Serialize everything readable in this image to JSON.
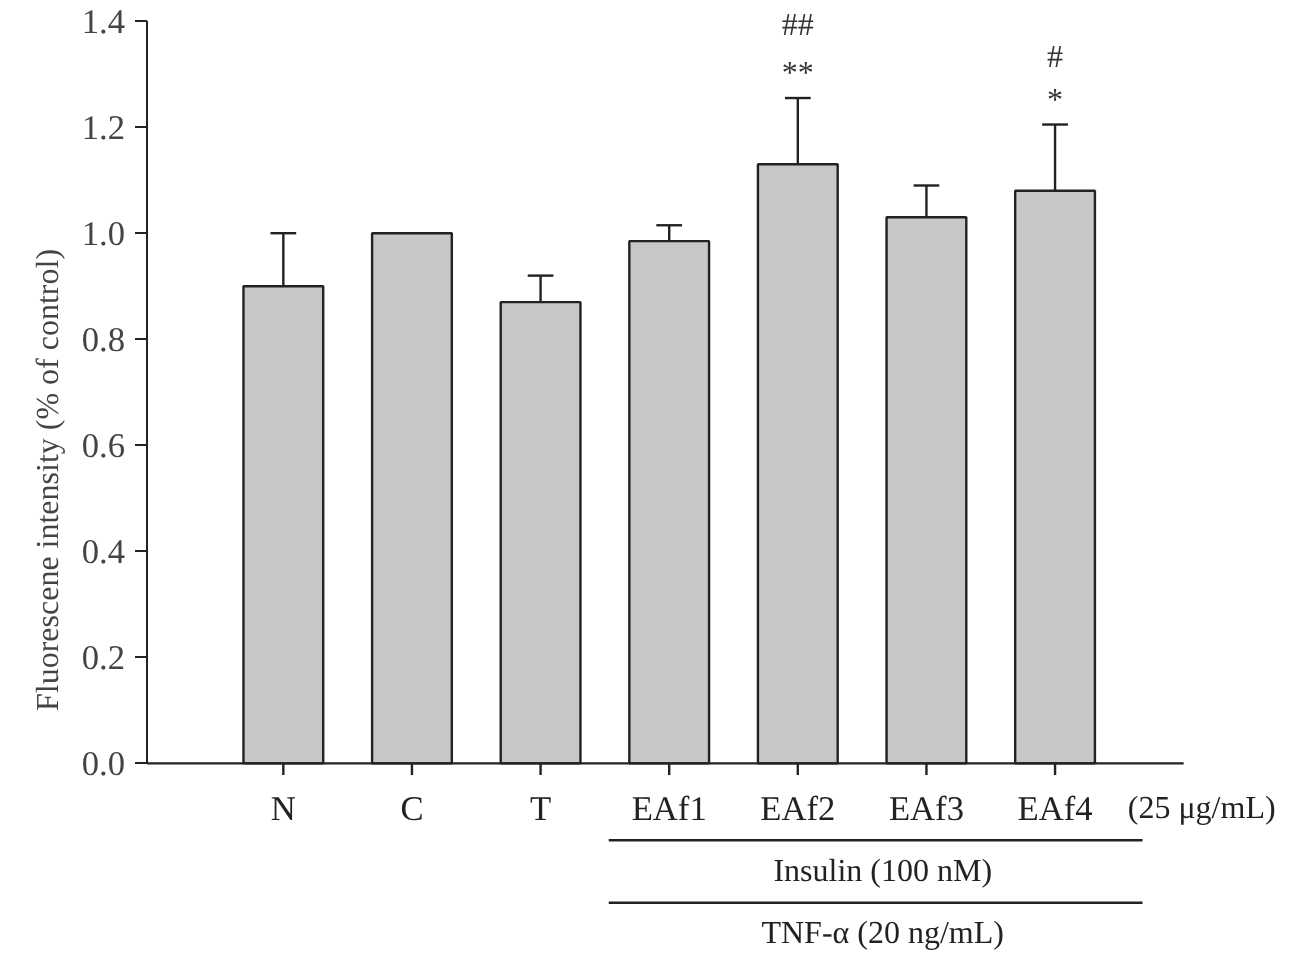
{
  "chart_data": {
    "type": "bar",
    "ylabel": "Fluorescene intensity (% of control)",
    "categories": [
      "N",
      "C",
      "T",
      "EAf1",
      "EAf2",
      "EAf3",
      "EAf4"
    ],
    "values": [
      0.9,
      1.0,
      0.87,
      0.985,
      1.13,
      1.03,
      1.08
    ],
    "errors": [
      [
        0.9,
        1.0
      ],
      null,
      [
        0.87,
        0.92
      ],
      [
        0.985,
        1.015
      ],
      [
        1.13,
        1.255
      ],
      [
        1.03,
        1.09
      ],
      [
        1.08,
        1.205
      ]
    ],
    "color": "#c6c7c9",
    "ylim": [
      0,
      1.4
    ],
    "yticks": [
      {
        "value": 0,
        "label": "0.0"
      },
      0.2,
      0.4,
      0.6,
      0.8,
      {
        "value": 1,
        "label": "1.0"
      },
      1.2,
      1.4
    ],
    "grid": false,
    "annotations": [
      "##",
      "**",
      "#",
      "*",
      "(25 μg/mL)",
      "Insulin (100 nM)",
      "TNF-α (20 ng/mL)"
    ]
  }
}
